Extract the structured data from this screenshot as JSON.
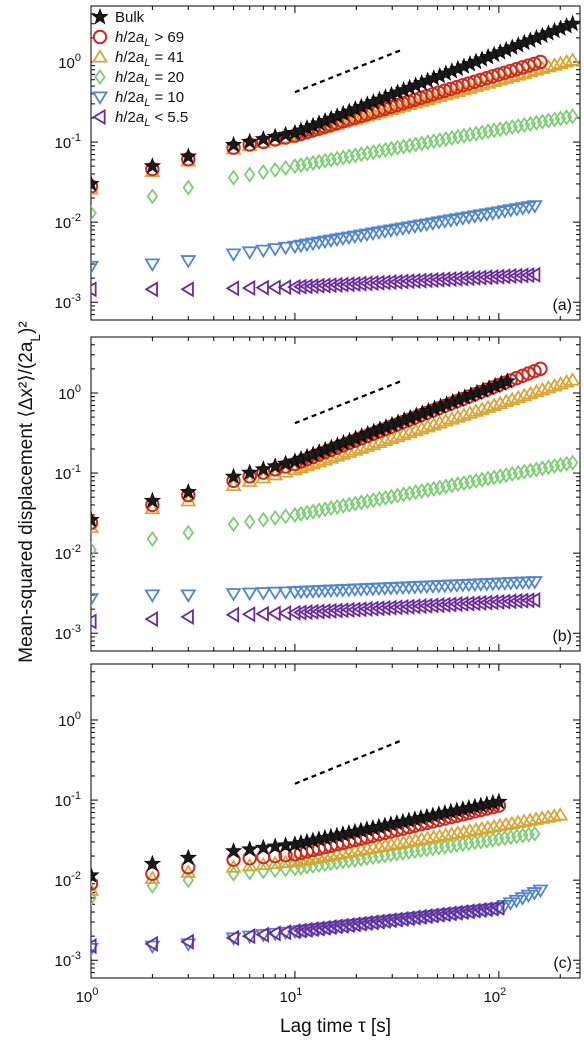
{
  "colors": {
    "bulk": "#1a1a1a",
    "h69": "#cc2b22",
    "h41": "#dba532",
    "h20": "#7ccd73",
    "h10": "#4f86cf",
    "h55": "#6b2a9a"
  },
  "chart_data": {
    "type": "scatter",
    "xlabel": "Lag time τ [s]",
    "ylabel": "Mean-squared displacement ⟨Δx²⟩/(2a_L)²",
    "xscale": "log",
    "yscale": "log",
    "xlim": [
      1,
      250
    ],
    "ylim": [
      0.0006,
      5
    ],
    "x_ticks": [
      {
        "base": "10",
        "exp": "0",
        "value": 1
      },
      {
        "base": "10",
        "exp": "1",
        "value": 10
      },
      {
        "base": "10",
        "exp": "2",
        "value": 100
      }
    ],
    "y_ticks": [
      {
        "base": "10",
        "exp": "-3",
        "value": 0.001
      },
      {
        "base": "10",
        "exp": "-2",
        "value": 0.01
      },
      {
        "base": "10",
        "exp": "-1",
        "value": 0.1
      },
      {
        "base": "10",
        "exp": "0",
        "value": 1
      }
    ],
    "legend": {
      "placement": "top-left",
      "entries": [
        {
          "id": "bulk",
          "text": "Bulk",
          "marker": "star"
        },
        {
          "id": "h69",
          "text": "h/2a_L > 69",
          "marker": "circle"
        },
        {
          "id": "h41",
          "text": "h/2a_L = 41",
          "marker": "triangle-up"
        },
        {
          "id": "h20",
          "text": "h/2a_L = 20",
          "marker": "diamond"
        },
        {
          "id": "h10",
          "text": "h/2a_L = 10",
          "marker": "triangle-down"
        },
        {
          "id": "h55",
          "text": "h/2a_L < 5.5",
          "marker": "triangle-left"
        }
      ]
    },
    "panels": [
      {
        "label": "(a)",
        "reference_line": {
          "x": [
            10,
            33
          ],
          "y": [
            0.42,
            1.4
          ]
        },
        "series": [
          {
            "id": "h55",
            "x_end": 150,
            "points": [
              [
                1,
                0.00145
              ],
              [
                2,
                0.00145
              ],
              [
                3,
                0.00145
              ],
              [
                10,
                0.00155
              ],
              [
                150,
                0.0022
              ]
            ]
          },
          {
            "id": "h10",
            "x_end": 150,
            "points": [
              [
                1,
                0.0028
              ],
              [
                2,
                0.003
              ],
              [
                3,
                0.0033
              ],
              [
                5,
                0.004
              ],
              [
                10,
                0.005
              ],
              [
                150,
                0.016
              ]
            ]
          },
          {
            "id": "h20",
            "x_end": 230,
            "points": [
              [
                1,
                0.013
              ],
              [
                2,
                0.021
              ],
              [
                3,
                0.027
              ],
              [
                5,
                0.036
              ],
              [
                10,
                0.05
              ],
              [
                230,
                0.21
              ]
            ]
          },
          {
            "id": "h41",
            "x_end": 230,
            "points": [
              [
                1,
                0.026
              ],
              [
                2,
                0.043
              ],
              [
                3,
                0.058
              ],
              [
                5,
                0.082
              ],
              [
                10,
                0.12
              ],
              [
                230,
                1.05
              ]
            ]
          },
          {
            "id": "h69",
            "x_end": 160,
            "points": [
              [
                1,
                0.028
              ],
              [
                2,
                0.046
              ],
              [
                3,
                0.061
              ],
              [
                5,
                0.085
              ],
              [
                10,
                0.12
              ],
              [
                160,
                1.0
              ]
            ]
          },
          {
            "id": "bulk",
            "x_end": 230,
            "points": [
              [
                1,
                0.03
              ],
              [
                2,
                0.05
              ],
              [
                3,
                0.066
              ],
              [
                5,
                0.092
              ],
              [
                10,
                0.13
              ],
              [
                230,
                3.0
              ]
            ]
          }
        ]
      },
      {
        "label": "(b)",
        "reference_line": {
          "x": [
            10,
            33
          ],
          "y": [
            0.42,
            1.4
          ]
        },
        "series": [
          {
            "id": "h55",
            "x_end": 150,
            "points": [
              [
                1,
                0.0014
              ],
              [
                2,
                0.0015
              ],
              [
                3,
                0.0016
              ],
              [
                5,
                0.0017
              ],
              [
                10,
                0.0018
              ],
              [
                150,
                0.0026
              ]
            ]
          },
          {
            "id": "h10",
            "x_end": 150,
            "points": [
              [
                1,
                0.0027
              ],
              [
                2,
                0.003
              ],
              [
                3,
                0.003
              ],
              [
                10,
                0.0033
              ],
              [
                150,
                0.0044
              ]
            ]
          },
          {
            "id": "h20",
            "x_end": 230,
            "points": [
              [
                1,
                0.011
              ],
              [
                2,
                0.015
              ],
              [
                3,
                0.018
              ],
              [
                5,
                0.023
              ],
              [
                10,
                0.03
              ],
              [
                230,
                0.135
              ]
            ]
          },
          {
            "id": "h41",
            "x_end": 230,
            "points": [
              [
                1,
                0.021
              ],
              [
                2,
                0.036
              ],
              [
                3,
                0.045
              ],
              [
                5,
                0.07
              ],
              [
                10,
                0.11
              ],
              [
                230,
                1.45
              ]
            ]
          },
          {
            "id": "h69",
            "x_end": 160,
            "points": [
              [
                1,
                0.024
              ],
              [
                2,
                0.04
              ],
              [
                3,
                0.053
              ],
              [
                5,
                0.08
              ],
              [
                10,
                0.13
              ],
              [
                160,
                2.0
              ]
            ]
          },
          {
            "id": "bulk",
            "x_end": 110,
            "points": [
              [
                1,
                0.026
              ],
              [
                2,
                0.045
              ],
              [
                3,
                0.058
              ],
              [
                5,
                0.09
              ],
              [
                10,
                0.14
              ],
              [
                110,
                1.4
              ]
            ]
          }
        ]
      },
      {
        "label": "(c)",
        "reference_line": {
          "x": [
            10,
            33
          ],
          "y": [
            0.16,
            0.55
          ]
        },
        "series": [
          {
            "id": "h10",
            "x_end": 160,
            "points": [
              [
                1,
                0.0014
              ],
              [
                2,
                0.0015
              ],
              [
                3,
                0.0016
              ],
              [
                5,
                0.0019
              ],
              [
                10,
                0.0023
              ],
              [
                100,
                0.0045
              ],
              [
                160,
                0.0075
              ]
            ]
          },
          {
            "id": "h55",
            "x_end": 100,
            "points": [
              [
                1,
                0.0015
              ],
              [
                2,
                0.0016
              ],
              [
                3,
                0.0017
              ],
              [
                5,
                0.0019
              ],
              [
                10,
                0.0023
              ],
              [
                100,
                0.0045
              ]
            ]
          },
          {
            "id": "h20",
            "x_end": 150,
            "points": [
              [
                1,
                0.006
              ],
              [
                2,
                0.0085
              ],
              [
                3,
                0.01
              ],
              [
                5,
                0.012
              ],
              [
                10,
                0.014
              ],
              [
                150,
                0.038
              ]
            ]
          },
          {
            "id": "h41",
            "x_end": 200,
            "points": [
              [
                1,
                0.0075
              ],
              [
                2,
                0.0105
              ],
              [
                3,
                0.0125
              ],
              [
                5,
                0.0145
              ],
              [
                10,
                0.017
              ],
              [
                200,
                0.065
              ]
            ]
          },
          {
            "id": "h69",
            "x_end": 100,
            "points": [
              [
                1,
                0.009
              ],
              [
                2,
                0.012
              ],
              [
                3,
                0.0145
              ],
              [
                5,
                0.018
              ],
              [
                10,
                0.021
              ],
              [
                100,
                0.085
              ]
            ]
          },
          {
            "id": "bulk",
            "x_end": 100,
            "points": [
              [
                1,
                0.0115
              ],
              [
                2,
                0.016
              ],
              [
                3,
                0.019
              ],
              [
                5,
                0.023
              ],
              [
                10,
                0.028
              ],
              [
                100,
                0.095
              ]
            ]
          }
        ]
      }
    ]
  }
}
